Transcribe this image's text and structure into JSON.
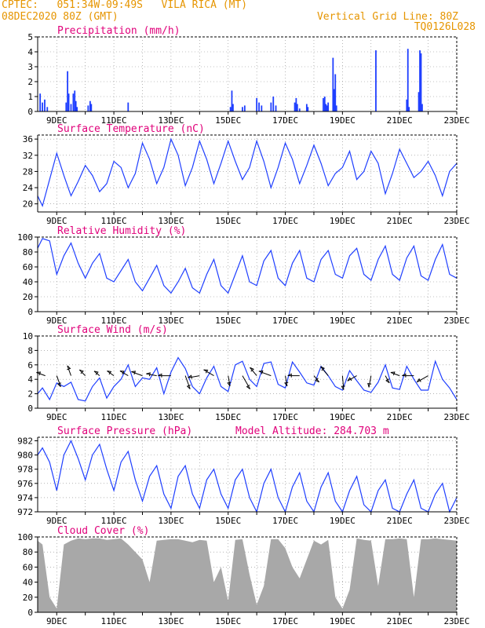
{
  "header": {
    "line1": "CPTEC:   051:34W-09:49S   VILA RICA (MT)",
    "line2": "08DEC2020 80Z (GMT)",
    "grid_note": "Vertical Grid Line: 80Z",
    "code": "TQ0126L028",
    "color": "#e69500"
  },
  "colors": {
    "series": "#1f3fff",
    "title": "#e0007a",
    "cloud": "#a8a8a8",
    "grid": "#888888"
  },
  "x_axis": {
    "start_day": 8.3333,
    "end_day": 23,
    "tick_days": [
      9,
      11,
      13,
      15,
      17,
      19,
      21,
      23
    ],
    "tick_labels": [
      "9DEC",
      "11DEC",
      "13DEC",
      "15DEC",
      "17DEC",
      "19DEC",
      "21DEC",
      "23DEC"
    ],
    "minor_every_day": true
  },
  "chart_data": [
    {
      "id": "precip",
      "type": "bar",
      "title": "Precipitation (mm/h)",
      "ylim": [
        0,
        5
      ],
      "yticks": [
        0,
        1,
        2,
        3,
        4,
        5
      ],
      "x_day": [
        8.42,
        8.5,
        8.58,
        8.67,
        9.33,
        9.38,
        9.42,
        9.5,
        9.58,
        9.63,
        9.67,
        9.71,
        10.1,
        10.17,
        10.21,
        11.5,
        15.08,
        15.13,
        15.17,
        15.5,
        15.58,
        16.0,
        16.08,
        16.17,
        16.5,
        16.58,
        16.67,
        17.33,
        17.38,
        17.42,
        17.5,
        17.75,
        17.79,
        18.33,
        18.38,
        18.42,
        18.46,
        18.5,
        18.67,
        18.71,
        18.75,
        18.79,
        20.17,
        21.25,
        21.29,
        21.33,
        21.67,
        21.71,
        21.75,
        21.79
      ],
      "values": [
        1.2,
        0.6,
        0.8,
        0.3,
        0.6,
        2.7,
        1.2,
        0.5,
        1.2,
        1.4,
        0.7,
        0.3,
        0.4,
        0.7,
        0.5,
        0.6,
        0.3,
        1.4,
        0.5,
        0.3,
        0.4,
        0.9,
        0.6,
        0.4,
        0.6,
        1.0,
        0.4,
        0.6,
        0.9,
        0.5,
        0.2,
        0.5,
        0.3,
        0.9,
        1.0,
        0.5,
        0.4,
        0.6,
        3.6,
        1.5,
        2.5,
        0.4,
        4.1,
        0.8,
        4.2,
        0.3,
        1.3,
        4.1,
        3.9,
        0.5
      ]
    },
    {
      "id": "temp",
      "type": "line",
      "title": "Surface Temperature (nC)",
      "ylim": [
        18,
        37
      ],
      "yticks": [
        20,
        24,
        28,
        32,
        36
      ],
      "x_day": [
        8.33,
        8.5,
        8.75,
        9.0,
        9.25,
        9.4,
        9.5,
        9.75,
        10.0,
        10.25,
        10.5,
        10.75,
        11.0,
        11.25,
        11.5,
        11.75,
        12.0,
        12.25,
        12.5,
        12.75,
        13.0,
        13.25,
        13.5,
        13.75,
        14.0,
        14.25,
        14.5,
        14.75,
        15.0,
        15.25,
        15.5,
        15.75,
        16.0,
        16.25,
        16.5,
        16.75,
        17.0,
        17.25,
        17.5,
        17.75,
        18.0,
        18.25,
        18.5,
        18.75,
        19.0,
        19.25,
        19.5,
        19.75,
        20.0,
        20.25,
        20.5,
        20.75,
        21.0,
        21.25,
        21.5,
        21.75,
        22.0,
        22.25,
        22.5,
        22.75,
        23.0
      ],
      "values": [
        22,
        19.5,
        26,
        32.5,
        27,
        24,
        22,
        25.5,
        29.5,
        27,
        23,
        25,
        30.5,
        29,
        24,
        27.5,
        35,
        31,
        25,
        29,
        36,
        32,
        24.5,
        29,
        35.5,
        31,
        25,
        30,
        35.5,
        30.5,
        26,
        29,
        35.5,
        30.5,
        24,
        29,
        35,
        31,
        25,
        29.5,
        34.5,
        30,
        24.5,
        27.5,
        29,
        33,
        26,
        28,
        33,
        30,
        22.5,
        27.5,
        33.5,
        30,
        26.5,
        28,
        30.5,
        27,
        22,
        28,
        30
      ]
    },
    {
      "id": "rh",
      "type": "line",
      "title": "Relative Humidity (%)",
      "ylim": [
        0,
        100
      ],
      "yticks": [
        0,
        20,
        40,
        60,
        80,
        100
      ],
      "x_day": [
        8.33,
        8.5,
        8.75,
        9.0,
        9.25,
        9.5,
        9.75,
        10.0,
        10.25,
        10.5,
        10.75,
        11.0,
        11.25,
        11.5,
        11.75,
        12.0,
        12.25,
        12.5,
        12.75,
        13.0,
        13.25,
        13.5,
        13.75,
        14.0,
        14.25,
        14.5,
        14.75,
        15.0,
        15.25,
        15.5,
        15.75,
        16.0,
        16.25,
        16.5,
        16.75,
        17.0,
        17.25,
        17.5,
        17.75,
        18.0,
        18.25,
        18.5,
        18.75,
        19.0,
        19.25,
        19.5,
        19.75,
        20.0,
        20.25,
        20.5,
        20.75,
        21.0,
        21.25,
        21.5,
        21.75,
        22.0,
        22.25,
        22.5,
        22.75,
        23.0
      ],
      "values": [
        85,
        98,
        95,
        50,
        75,
        92,
        65,
        45,
        65,
        78,
        45,
        40,
        55,
        70,
        40,
        28,
        45,
        62,
        35,
        25,
        40,
        58,
        32,
        25,
        50,
        70,
        35,
        25,
        50,
        75,
        40,
        35,
        68,
        82,
        45,
        35,
        65,
        82,
        45,
        40,
        70,
        82,
        50,
        45,
        75,
        85,
        50,
        42,
        70,
        88,
        50,
        42,
        72,
        88,
        48,
        42,
        70,
        90,
        50,
        45
      ]
    },
    {
      "id": "wind",
      "type": "line",
      "title": "Surface Wind (m/s)",
      "ylim": [
        0,
        10
      ],
      "yticks": [
        0,
        2,
        4,
        6,
        8,
        10
      ],
      "x_day": [
        8.33,
        8.5,
        8.75,
        9.0,
        9.25,
        9.5,
        9.75,
        10.0,
        10.25,
        10.5,
        10.75,
        11.0,
        11.25,
        11.5,
        11.75,
        12.0,
        12.25,
        12.5,
        12.75,
        13.0,
        13.25,
        13.5,
        13.75,
        14.0,
        14.25,
        14.5,
        14.75,
        15.0,
        15.25,
        15.5,
        15.75,
        16.0,
        16.25,
        16.5,
        16.75,
        17.0,
        17.25,
        17.5,
        17.75,
        18.0,
        18.25,
        18.5,
        18.75,
        19.0,
        19.25,
        19.5,
        19.75,
        20.0,
        20.25,
        20.5,
        20.75,
        21.0,
        21.25,
        21.5,
        21.75,
        22.0,
        22.25,
        22.5,
        22.75,
        23.0
      ],
      "values": [
        2,
        2.8,
        1.2,
        3.5,
        3,
        3.6,
        1.2,
        1,
        3,
        4.2,
        1.4,
        3,
        4,
        6,
        3,
        4.2,
        4,
        5.6,
        2,
        5,
        7,
        5.5,
        3,
        2,
        4.2,
        5.8,
        3,
        2.3,
        6,
        6.5,
        4,
        3,
        6.2,
        6.4,
        3.3,
        2.8,
        6.4,
        5,
        3.5,
        3.2,
        5.8,
        4.5,
        3,
        2.5,
        5.2,
        3.8,
        2.5,
        2.2,
        3.6,
        6,
        2.8,
        2.6,
        5.8,
        4,
        2.5,
        2.5,
        6.5,
        4,
        2.8,
        1.2
      ],
      "arrow_x_day": [
        8.6,
        9.0,
        9.5,
        10.0,
        10.5,
        11.0,
        11.5,
        12.0,
        12.5,
        13.0,
        13.5,
        14.0,
        14.5,
        15.0,
        15.5,
        16.0,
        16.5,
        17.0,
        17.5,
        18.0,
        18.5,
        19.0,
        19.5,
        20.0,
        20.5,
        21.0,
        21.5,
        22.0
      ],
      "arrow_dir_deg": [
        250,
        20,
        200,
        225,
        230,
        235,
        240,
        250,
        260,
        270,
        20,
        280,
        240,
        10,
        30,
        220,
        250,
        10,
        270,
        40,
        220,
        5,
        300,
        350,
        30,
        250,
        270,
        300
      ],
      "arrow_speed": [
        2,
        3,
        2.5,
        1.5,
        1,
        1.5,
        2,
        3,
        2.5,
        3.5,
        4,
        3,
        3,
        2.5,
        4.5,
        2.5,
        3.5,
        2.5,
        3,
        1.5,
        3,
        4,
        2.5,
        3,
        1.5,
        2,
        3,
        3.5
      ]
    },
    {
      "id": "pres",
      "type": "line",
      "title": "Surface Pressure (hPa)",
      "note": "Model Altitude: 284.703 m",
      "ylim": [
        972,
        982.5
      ],
      "yticks": [
        972,
        974,
        976,
        978,
        980,
        982
      ],
      "x_day": [
        8.33,
        8.5,
        8.75,
        9.0,
        9.25,
        9.5,
        9.75,
        10.0,
        10.25,
        10.5,
        10.75,
        11.0,
        11.25,
        11.5,
        11.75,
        12.0,
        12.25,
        12.5,
        12.75,
        13.0,
        13.25,
        13.5,
        13.75,
        14.0,
        14.25,
        14.5,
        14.75,
        15.0,
        15.25,
        15.5,
        15.75,
        16.0,
        16.25,
        16.5,
        16.75,
        17.0,
        17.25,
        17.5,
        17.75,
        18.0,
        18.25,
        18.5,
        18.75,
        19.0,
        19.25,
        19.5,
        19.75,
        20.0,
        20.25,
        20.5,
        20.75,
        21.0,
        21.25,
        21.5,
        21.75,
        22.0,
        22.25,
        22.5,
        22.75,
        23.0
      ],
      "values": [
        980,
        981,
        979,
        975,
        980,
        982,
        979.5,
        976.5,
        980,
        981.5,
        978,
        975,
        979,
        980.5,
        976.5,
        973.5,
        977,
        978.5,
        974.5,
        972.5,
        977,
        978.5,
        974.5,
        972.5,
        976.5,
        978,
        974.5,
        972.5,
        976.5,
        978,
        974,
        972,
        976,
        978,
        974,
        972,
        975.5,
        977.5,
        973.5,
        972,
        975.5,
        977.5,
        973.5,
        971.5,
        975,
        977,
        973,
        972,
        975,
        976.5,
        972.5,
        971.5,
        974.5,
        976.5,
        972.5,
        971.5,
        974.5,
        976,
        972,
        974
      ]
    },
    {
      "id": "cloud",
      "type": "area",
      "title": "Cloud Cover (%)",
      "ylim": [
        0,
        100
      ],
      "yticks": [
        0,
        20,
        40,
        60,
        80,
        100
      ],
      "x_day": [
        8.33,
        8.5,
        8.75,
        9.0,
        9.25,
        9.5,
        9.75,
        10.0,
        10.25,
        10.5,
        10.75,
        11.0,
        11.25,
        11.5,
        11.75,
        12.0,
        12.25,
        12.5,
        12.75,
        13.0,
        13.25,
        13.5,
        13.75,
        14.0,
        14.25,
        14.5,
        14.75,
        15.0,
        15.25,
        15.5,
        15.75,
        16.0,
        16.25,
        16.5,
        16.75,
        17.0,
        17.25,
        17.5,
        17.75,
        18.0,
        18.25,
        18.5,
        18.75,
        19.0,
        19.25,
        19.5,
        19.75,
        20.0,
        20.25,
        20.5,
        20.75,
        21.0,
        21.25,
        21.5,
        21.75,
        22.0,
        22.25,
        22.5,
        22.75,
        23.0
      ],
      "values": [
        95,
        90,
        20,
        5,
        90,
        95,
        98,
        97,
        98,
        98,
        96,
        97,
        98,
        90,
        80,
        70,
        40,
        95,
        96,
        97,
        97,
        95,
        93,
        96,
        95,
        40,
        60,
        15,
        96,
        97,
        50,
        10,
        35,
        97,
        97,
        85,
        60,
        45,
        70,
        95,
        90,
        96,
        20,
        5,
        30,
        98,
        96,
        95,
        35,
        97,
        97,
        98,
        97,
        20,
        97,
        97,
        98,
        97,
        96,
        95
      ]
    }
  ],
  "panels": [
    {
      "id": "precip",
      "top": 47,
      "bottom": 142
    },
    {
      "id": "temp",
      "top": 172,
      "bottom": 270
    },
    {
      "id": "rh",
      "top": 302,
      "bottom": 397
    },
    {
      "id": "wind",
      "top": 428,
      "bottom": 520
    },
    {
      "id": "pres",
      "top": 557,
      "bottom": 652
    },
    {
      "id": "cloud",
      "top": 684,
      "bottom": 780
    }
  ]
}
